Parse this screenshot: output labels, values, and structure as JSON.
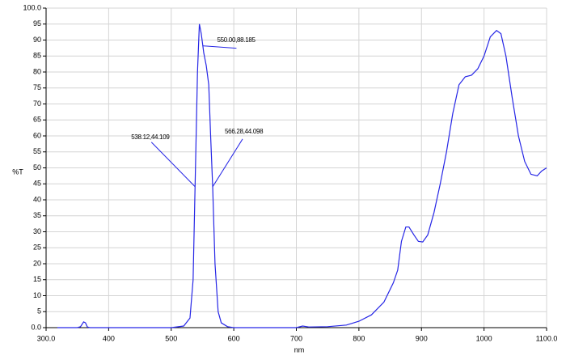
{
  "chart_data": {
    "type": "line",
    "xlabel": "nm",
    "ylabel": "%T",
    "xlim": [
      300,
      1100
    ],
    "ylim": [
      0,
      100
    ],
    "xticks": [
      {
        "value": 300,
        "label": "300.0"
      },
      400,
      500,
      600,
      700,
      800,
      900,
      1000,
      {
        "value": 1100,
        "label": "1100.0"
      }
    ],
    "yticks": [
      {
        "value": 0,
        "label": "0.0"
      },
      5,
      10,
      15,
      20,
      25,
      30,
      35,
      40,
      45,
      50,
      55,
      60,
      65,
      70,
      75,
      80,
      85,
      90,
      95,
      {
        "value": 100,
        "label": "100.0"
      }
    ],
    "grid": true,
    "series": [
      {
        "color": "#2626e6",
        "x": [
          318,
          350,
          355,
          360,
          363,
          366,
          370,
          400,
          500,
          520,
          530,
          535,
          538.12,
          542,
          545,
          548,
          552,
          556,
          560,
          563,
          566.28,
          570,
          575,
          580,
          590,
          600,
          700,
          710,
          720,
          750,
          780,
          800,
          820,
          840,
          855,
          862,
          868,
          875,
          880,
          888,
          895,
          902,
          910,
          920,
          930,
          940,
          950,
          960,
          970,
          980,
          990,
          1000,
          1010,
          1020,
          1027,
          1035,
          1045,
          1055,
          1065,
          1075,
          1085,
          1092,
          1100
        ],
        "values": [
          0,
          0,
          0.3,
          1.8,
          1.5,
          0.2,
          0,
          0,
          0,
          0.5,
          3,
          15,
          44.109,
          80,
          95,
          92,
          86,
          82,
          76,
          60,
          44.098,
          20,
          5,
          1.5,
          0.3,
          0,
          0,
          0.5,
          0.2,
          0.3,
          0.8,
          2,
          4,
          8,
          14,
          18,
          27,
          31.5,
          31.5,
          29,
          27,
          26.8,
          29,
          36,
          45,
          55,
          67,
          76,
          78.5,
          79,
          81,
          85,
          91,
          93,
          92,
          85,
          72,
          60,
          52,
          48,
          47.5,
          49,
          50
        ]
      }
    ],
    "annotations": [
      {
        "x": 550,
        "y": 88.185,
        "label": "550.00,88.185"
      },
      {
        "x": 538.12,
        "y": 44.109,
        "label": "538.12,44.109"
      },
      {
        "x": 566.28,
        "y": 44.098,
        "label": "566.28,44.098"
      }
    ]
  }
}
